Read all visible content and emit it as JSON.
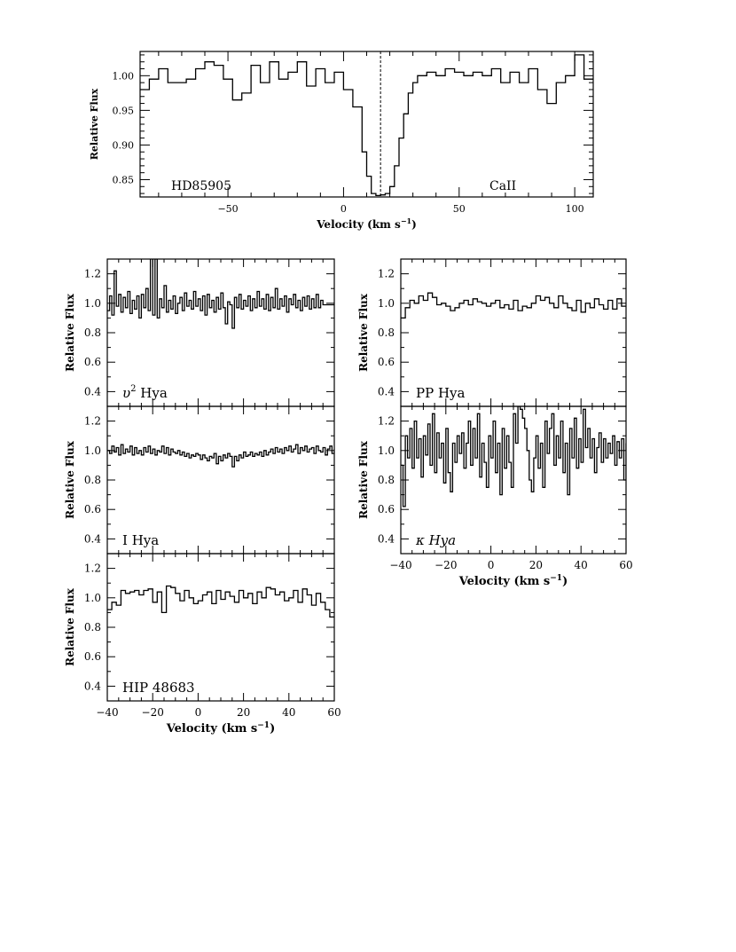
{
  "chart_data": [
    {
      "id": "hd85905",
      "type": "line",
      "label": "HD85905",
      "label2": "CaII",
      "xlabel": "Velocity (km s",
      "xlabel_sup": "−1",
      "xlabel_end": ")",
      "ylabel": "Relative Flux",
      "xlim": [
        -88,
        108
      ],
      "ylim": [
        0.825,
        1.035
      ],
      "xticks": [
        -50,
        0,
        50,
        100
      ],
      "xtick_labels": [
        "−50",
        "0",
        "50",
        "100"
      ],
      "yticks": [
        0.85,
        0.9,
        0.95,
        1.0
      ],
      "ytick_labels": [
        "0.85",
        "0.90",
        "0.95",
        "1.00"
      ],
      "dashed_x": 16,
      "x": [
        -88,
        -84,
        -80,
        -76,
        -72,
        -68,
        -64,
        -60,
        -56,
        -52,
        -48,
        -44,
        -40,
        -36,
        -32,
        -28,
        -24,
        -20,
        -16,
        -12,
        -8,
        -4,
        0,
        4,
        8,
        10,
        12,
        14,
        16,
        18,
        20,
        22,
        24,
        26,
        28,
        30,
        32,
        36,
        40,
        44,
        48,
        52,
        56,
        60,
        64,
        68,
        72,
        76,
        80,
        84,
        88,
        92,
        96,
        100,
        104
      ],
      "y": [
        0.98,
        0.995,
        1.01,
        0.99,
        0.99,
        0.995,
        1.01,
        1.02,
        1.015,
        0.995,
        0.965,
        0.975,
        1.015,
        0.99,
        1.02,
        0.995,
        1.005,
        1.02,
        0.985,
        1.01,
        0.99,
        1.005,
        0.98,
        0.955,
        0.89,
        0.855,
        0.83,
        0.827,
        0.828,
        0.83,
        0.84,
        0.87,
        0.91,
        0.945,
        0.975,
        0.99,
        1.0,
        1.005,
        1.0,
        1.01,
        1.005,
        1.0,
        1.005,
        1.0,
        1.01,
        0.99,
        1.005,
        0.99,
        1.01,
        0.98,
        0.96,
        0.99,
        1.0,
        1.03,
        0.995
      ]
    },
    {
      "id": "ups2hya",
      "type": "line",
      "label": "υ",
      "label_sup": "2",
      "label_end": " Hya",
      "ylabel": "Relative Flux",
      "xlim": [
        -40,
        60
      ],
      "ylim": [
        0.3,
        1.3
      ],
      "yticks": [
        0.4,
        0.6,
        0.8,
        1.0,
        1.2
      ],
      "ytick_labels": [
        "0.4",
        "0.6",
        "0.8",
        "1.0",
        "1.2"
      ],
      "xticks": [
        -40,
        -20,
        0,
        20,
        40,
        60
      ],
      "x": [
        -40,
        -39,
        -38,
        -37,
        -36,
        -35,
        -34,
        -33,
        -32,
        -31,
        -30,
        -29,
        -28,
        -27,
        -26,
        -25,
        -24,
        -23,
        -22,
        -21,
        -20,
        -19,
        -18,
        -17,
        -16,
        -15,
        -14,
        -13,
        -12,
        -11,
        -10,
        -9,
        -8,
        -7,
        -6,
        -5,
        -4,
        -3,
        -2,
        -1,
        0,
        1,
        2,
        3,
        4,
        5,
        6,
        7,
        8,
        9,
        10,
        11,
        12,
        13,
        14,
        15,
        16,
        17,
        18,
        19,
        20,
        21,
        22,
        23,
        24,
        25,
        26,
        27,
        28,
        29,
        30,
        31,
        32,
        33,
        34,
        35,
        36,
        37,
        38,
        39,
        40,
        41,
        42,
        43,
        44,
        45,
        46,
        47,
        48,
        49,
        50,
        51,
        52,
        53,
        54,
        55
      ],
      "y": [
        0.95,
        1.05,
        0.92,
        1.22,
        0.98,
        1.06,
        0.94,
        1.04,
        0.97,
        1.08,
        0.93,
        1.02,
        0.96,
        1.05,
        0.9,
        1.06,
        0.97,
        1.1,
        0.95,
        1.35,
        0.92,
        1.3,
        0.9,
        1.03,
        0.97,
        1.12,
        0.94,
        1.02,
        0.96,
        1.05,
        0.93,
        1.0,
        1.04,
        0.95,
        1.07,
        0.98,
        1.02,
        0.96,
        1.08,
        0.98,
        1.03,
        0.95,
        1.05,
        0.92,
        1.06,
        0.97,
        1.02,
        0.94,
        1.04,
        0.96,
        1.07,
        0.97,
        0.86,
        1.01,
        0.99,
        0.83,
        1.04,
        0.97,
        1.06,
        0.96,
        1.02,
        0.98,
        1.05,
        0.95,
        1.03,
        0.97,
        1.08,
        0.98,
        1.03,
        0.96,
        1.06,
        0.95,
        1.04,
        0.97,
        1.1,
        0.96,
        1.03,
        0.98,
        1.05,
        0.94,
        1.03,
        0.99,
        1.06,
        0.97,
        1.02,
        0.95,
        1.04,
        0.98,
        1.05,
        0.96,
        1.03,
        0.97,
        1.06,
        0.97,
        1.02,
        0.99
      ]
    },
    {
      "id": "ihya",
      "type": "line",
      "label": "I Hya",
      "ylabel": "Relative Flux",
      "xlim": [
        -40,
        60
      ],
      "ylim": [
        0.3,
        1.3
      ],
      "yticks": [
        0.4,
        0.6,
        0.8,
        1.0,
        1.2
      ],
      "ytick_labels": [
        "0.4",
        "0.6",
        "0.8",
        "1.0",
        "1.2"
      ],
      "xticks": [
        -40,
        -20,
        0,
        20,
        40,
        60
      ],
      "x": [
        -40,
        -39,
        -38,
        -37,
        -36,
        -35,
        -34,
        -33,
        -32,
        -31,
        -30,
        -29,
        -28,
        -27,
        -26,
        -25,
        -24,
        -23,
        -22,
        -21,
        -20,
        -19,
        -18,
        -17,
        -16,
        -15,
        -14,
        -13,
        -12,
        -11,
        -10,
        -9,
        -8,
        -7,
        -6,
        -5,
        -4,
        -3,
        -2,
        -1,
        0,
        1,
        2,
        3,
        4,
        5,
        6,
        7,
        8,
        9,
        10,
        11,
        12,
        13,
        14,
        15,
        16,
        17,
        18,
        19,
        20,
        21,
        22,
        23,
        24,
        25,
        26,
        27,
        28,
        29,
        30,
        31,
        32,
        33,
        34,
        35,
        36,
        37,
        38,
        39,
        40,
        41,
        42,
        43,
        44,
        45,
        46,
        47,
        48,
        49,
        50,
        51,
        52,
        53,
        54,
        55,
        56,
        57,
        58,
        59,
        60
      ],
      "y": [
        1.0,
        0.98,
        1.03,
        0.99,
        1.02,
        0.97,
        1.04,
        0.98,
        1.01,
        0.99,
        1.03,
        0.97,
        1.02,
        0.98,
        1.0,
        0.97,
        1.02,
        0.99,
        1.03,
        0.98,
        1.01,
        0.97,
        1.0,
        0.99,
        1.03,
        0.98,
        1.02,
        0.97,
        1.01,
        0.99,
        0.98,
        1.0,
        0.97,
        0.99,
        0.96,
        0.98,
        0.95,
        0.97,
        0.96,
        0.98,
        0.97,
        0.94,
        0.97,
        0.95,
        0.93,
        0.96,
        0.95,
        0.98,
        0.91,
        0.96,
        0.93,
        0.97,
        0.95,
        0.98,
        0.96,
        0.89,
        0.96,
        0.93,
        0.97,
        0.95,
        0.99,
        0.96,
        0.97,
        0.99,
        0.96,
        0.98,
        0.97,
        0.99,
        0.96,
        1.0,
        0.97,
        0.99,
        1.01,
        0.98,
        1.02,
        0.99,
        1.01,
        0.98,
        1.02,
        1.0,
        1.03,
        0.99,
        1.01,
        1.04,
        0.98,
        1.02,
        1.0,
        1.03,
        0.99,
        1.01,
        1.02,
        0.98,
        1.03,
        1.0,
        0.99,
        1.02,
        0.97,
        1.01,
        1.03,
        0.98,
        1.01
      ]
    },
    {
      "id": "hip48683",
      "type": "line",
      "label": "HIP 48683",
      "ylabel": "Relative Flux",
      "xlabel": "Velocity (km s",
      "xlabel_sup": "−1",
      "xlabel_end": ")",
      "xlim": [
        -40,
        60
      ],
      "ylim": [
        0.3,
        1.3
      ],
      "yticks": [
        0.4,
        0.6,
        0.8,
        1.0,
        1.2
      ],
      "ytick_labels": [
        "0.4",
        "0.6",
        "0.8",
        "1.0",
        "1.2"
      ],
      "xticks": [
        -40,
        -20,
        0,
        20,
        40,
        60
      ],
      "xtick_labels": [
        "−40",
        "−20",
        "0",
        "20",
        "40",
        "60"
      ],
      "x": [
        -40,
        -38,
        -36,
        -34,
        -32,
        -30,
        -28,
        -26,
        -24,
        -22,
        -20,
        -18,
        -16,
        -14,
        -12,
        -10,
        -8,
        -6,
        -4,
        -2,
        0,
        2,
        4,
        6,
        8,
        10,
        12,
        14,
        16,
        18,
        20,
        22,
        24,
        26,
        28,
        30,
        32,
        34,
        36,
        38,
        40,
        42,
        44,
        46,
        48,
        50,
        52,
        54,
        56,
        58
      ],
      "y": [
        0.92,
        0.97,
        0.95,
        1.05,
        1.03,
        1.04,
        1.05,
        1.02,
        1.05,
        1.06,
        0.97,
        1.04,
        0.9,
        1.08,
        1.07,
        1.03,
        0.98,
        1.05,
        1.0,
        0.96,
        0.98,
        1.02,
        1.04,
        0.96,
        1.05,
        0.99,
        1.04,
        1.01,
        0.97,
        1.05,
        1.0,
        1.03,
        0.96,
        1.04,
        1.0,
        1.07,
        1.06,
        1.02,
        1.04,
        0.98,
        1.0,
        1.05,
        0.97,
        1.06,
        1.02,
        0.95,
        1.03,
        0.97,
        0.92,
        0.87
      ]
    },
    {
      "id": "pphya",
      "type": "line",
      "label": "PP Hya",
      "ylabel": "Relative Flux",
      "xlim": [
        -40,
        60
      ],
      "ylim": [
        0.3,
        1.3
      ],
      "yticks": [
        0.4,
        0.6,
        0.8,
        1.0,
        1.2
      ],
      "ytick_labels": [
        "0.4",
        "0.6",
        "0.8",
        "1.0",
        "1.2"
      ],
      "xticks": [
        -40,
        -20,
        0,
        20,
        40,
        60
      ],
      "x": [
        -40,
        -38,
        -36,
        -34,
        -32,
        -30,
        -28,
        -26,
        -24,
        -22,
        -20,
        -18,
        -16,
        -14,
        -12,
        -10,
        -8,
        -6,
        -4,
        -2,
        0,
        2,
        4,
        6,
        8,
        10,
        12,
        14,
        16,
        18,
        20,
        22,
        24,
        26,
        28,
        30,
        32,
        34,
        36,
        38,
        40,
        42,
        44,
        46,
        48,
        50,
        52,
        54,
        56,
        58
      ],
      "y": [
        0.9,
        0.97,
        1.02,
        1.0,
        1.05,
        1.02,
        1.07,
        1.04,
        0.99,
        1.0,
        0.98,
        0.95,
        0.97,
        1.0,
        1.02,
        0.99,
        1.03,
        1.01,
        1.0,
        0.98,
        1.0,
        1.02,
        0.97,
        0.99,
        0.96,
        1.02,
        0.95,
        0.98,
        0.97,
        1.0,
        1.05,
        1.02,
        1.04,
        1.0,
        0.97,
        1.05,
        1.0,
        0.97,
        0.95,
        1.02,
        0.94,
        1.0,
        0.97,
        1.03,
        0.99,
        0.96,
        1.02,
        0.96,
        1.03,
        0.98
      ]
    },
    {
      "id": "kappahya",
      "type": "line",
      "label": "κ Hya",
      "ylabel": "Relative Flux",
      "xlabel": "Velocity (km s",
      "xlabel_sup": "−1",
      "xlabel_end": ")",
      "xlim": [
        -40,
        60
      ],
      "ylim": [
        0.3,
        1.3
      ],
      "yticks": [
        0.4,
        0.6,
        0.8,
        1.0,
        1.2
      ],
      "ytick_labels": [
        "0.4",
        "0.6",
        "0.8",
        "1.0",
        "1.2"
      ],
      "xticks": [
        -40,
        -20,
        0,
        20,
        40,
        60
      ],
      "xtick_labels": [
        "−40",
        "−20",
        "0",
        "20",
        "40",
        "60"
      ],
      "x": [
        -40,
        -39,
        -38,
        -37,
        -36,
        -35,
        -34,
        -33,
        -32,
        -31,
        -30,
        -29,
        -28,
        -27,
        -26,
        -25,
        -24,
        -23,
        -22,
        -21,
        -20,
        -19,
        -18,
        -17,
        -16,
        -15,
        -14,
        -13,
        -12,
        -11,
        -10,
        -9,
        -8,
        -7,
        -6,
        -5,
        -4,
        -3,
        -2,
        -1,
        0,
        1,
        2,
        3,
        4,
        5,
        6,
        7,
        8,
        9,
        10,
        11,
        12,
        13,
        14,
        15,
        16,
        17,
        18,
        19,
        20,
        21,
        22,
        23,
        24,
        25,
        26,
        27,
        28,
        29,
        30,
        31,
        32,
        33,
        34,
        35,
        36,
        37,
        38,
        39,
        40,
        41,
        42,
        43,
        44,
        45,
        46,
        47,
        48,
        49,
        50,
        51,
        52,
        53,
        54,
        55,
        56,
        57,
        58,
        59,
        60
      ],
      "y": [
        0.9,
        0.62,
        1.1,
        0.95,
        1.15,
        0.88,
        1.2,
        0.95,
        1.08,
        0.82,
        1.1,
        0.97,
        1.18,
        0.9,
        1.25,
        0.85,
        1.12,
        0.95,
        1.05,
        0.78,
        1.15,
        0.85,
        0.72,
        1.05,
        0.92,
        1.1,
        0.98,
        1.12,
        0.88,
        1.05,
        1.2,
        0.9,
        1.15,
        0.95,
        1.25,
        0.82,
        1.05,
        0.92,
        0.75,
        1.1,
        0.95,
        1.2,
        0.85,
        1.05,
        0.7,
        1.15,
        0.88,
        1.1,
        0.92,
        0.75,
        1.25,
        1.05,
        1.3,
        1.28,
        1.22,
        1.15,
        1.0,
        0.8,
        0.72,
        0.95,
        1.1,
        0.88,
        1.05,
        0.75,
        1.2,
        0.98,
        1.15,
        1.25,
        0.9,
        1.1,
        0.95,
        1.2,
        0.85,
        1.05,
        0.7,
        1.15,
        0.95,
        1.22,
        0.88,
        1.08,
        0.92,
        1.28,
        1.02,
        1.15,
        0.95,
        1.08,
        0.85,
        1.02,
        1.12,
        0.92,
        1.08,
        0.95,
        1.05,
        0.98,
        1.1,
        0.9,
        1.06,
        0.95,
        1.08,
        0.8,
        1.05
      ]
    }
  ]
}
